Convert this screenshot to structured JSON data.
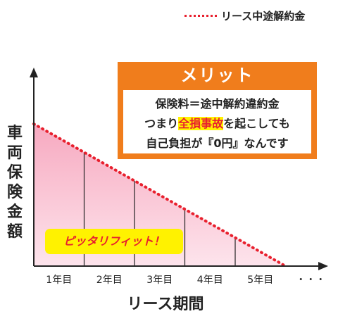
{
  "legend": {
    "label": "リース中途解約金",
    "color": "#e8202e"
  },
  "callout": {
    "title": "メリット",
    "line1": "保険料＝途中解約違約金",
    "line2_pre": "つまり",
    "line2_highlight": "全損事故",
    "line2_post": "を起こしても",
    "line3": "自己負担が『0円』なんです",
    "bg_color": "#f07d1c"
  },
  "badge": {
    "text": "ピッタリフィット！"
  },
  "chart_data": {
    "type": "area",
    "xlabel": "リース期間",
    "ylabel": "車両保険金額",
    "categories": [
      "1年目",
      "2年目",
      "3年目",
      "4年目",
      "5年目",
      "・・・"
    ],
    "series": [
      {
        "kind": "insurance-amount",
        "values": [
          100,
          80,
          60,
          40,
          20,
          0
        ],
        "color": "#f9c0d0"
      },
      {
        "name": "リース中途解約金",
        "values": [
          100,
          80,
          60,
          40,
          20,
          0
        ],
        "color": "#e8202e"
      }
    ],
    "ylim": [
      0,
      100
    ],
    "grid": false
  }
}
